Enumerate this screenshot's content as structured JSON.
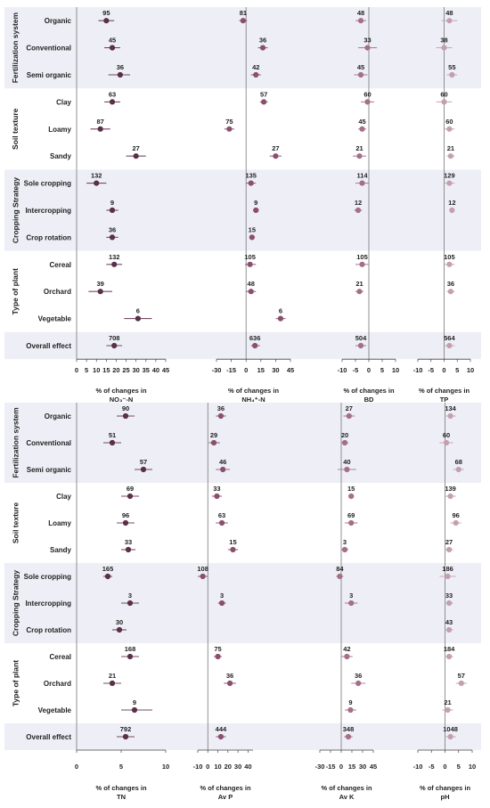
{
  "chart_data": [
    {
      "type": "forest",
      "title": "",
      "groups": [
        {
          "label": "Fertilization system",
          "shaded": true,
          "rows": [
            "Organic",
            "Conventional",
            "Semi organic"
          ]
        },
        {
          "label": "Soil texture",
          "shaded": false,
          "rows": [
            "Clay",
            "Loamy",
            "Sandy"
          ]
        },
        {
          "label": "Cropping Strategy",
          "shaded": true,
          "rows": [
            "Sole cropping",
            "Intercropping",
            "Crop rotation"
          ]
        },
        {
          "label": "Type of plant",
          "shaded": false,
          "rows": [
            "Cereal",
            "Orchard",
            "Vegetable"
          ]
        },
        {
          "label": "",
          "shaded": true,
          "rows": [
            "Overall effect"
          ]
        }
      ],
      "panels": [
        {
          "xlabel": [
            "% of changes in",
            "NO₃⁻-N"
          ],
          "xlim": [
            0,
            45
          ],
          "ticks": [
            "0",
            "5",
            "10",
            "15",
            "20",
            "25",
            "30",
            "35",
            "40",
            "45"
          ],
          "color": "#5a2f48",
          "points": [
            {
              "n": "95",
              "mean": 15,
              "lo": 11,
              "hi": 19
            },
            {
              "n": "45",
              "mean": 18,
              "lo": 14,
              "hi": 22
            },
            {
              "n": "36",
              "mean": 22,
              "lo": 16,
              "hi": 27
            },
            {
              "n": "63",
              "mean": 18,
              "lo": 14,
              "hi": 22
            },
            {
              "n": "87",
              "mean": 12,
              "lo": 7,
              "hi": 17
            },
            {
              "n": "27",
              "mean": 30,
              "lo": 25,
              "hi": 35
            },
            {
              "n": "132",
              "mean": 10,
              "lo": 5,
              "hi": 15
            },
            {
              "n": "9",
              "mean": 18,
              "lo": 15,
              "hi": 21
            },
            {
              "n": "36",
              "mean": 18,
              "lo": 15,
              "hi": 21
            },
            {
              "n": "132",
              "mean": 19,
              "lo": 15,
              "hi": 23
            },
            {
              "n": "39",
              "mean": 12,
              "lo": 6,
              "hi": 18
            },
            {
              "n": "6",
              "mean": 31,
              "lo": 24,
              "hi": 38
            },
            {
              "n": "708",
              "mean": 19,
              "lo": 15,
              "hi": 23
            }
          ]
        },
        {
          "xlabel": [
            "% of changes in",
            "NH₄⁺-N"
          ],
          "xlim": [
            -30,
            45
          ],
          "ticks": [
            "-30",
            "-15",
            "0",
            "15",
            "30",
            "45"
          ],
          "color": "#8b4f6e",
          "points": [
            {
              "n": "81",
              "mean": -3,
              "lo": -7,
              "hi": 1
            },
            {
              "n": "36",
              "mean": 17,
              "lo": 12,
              "hi": 22
            },
            {
              "n": "42",
              "mean": 10,
              "lo": 5,
              "hi": 15
            },
            {
              "n": "57",
              "mean": 18,
              "lo": 14,
              "hi": 22
            },
            {
              "n": "75",
              "mean": -17,
              "lo": -22,
              "hi": -12
            },
            {
              "n": "27",
              "mean": 30,
              "lo": 24,
              "hi": 36
            },
            {
              "n": "135",
              "mean": 5,
              "lo": 0,
              "hi": 10
            },
            {
              "n": "9",
              "mean": 10,
              "lo": 7,
              "hi": 13
            },
            {
              "n": "15",
              "mean": 6,
              "lo": 4,
              "hi": 9
            },
            {
              "n": "105",
              "mean": 4,
              "lo": -1,
              "hi": 10
            },
            {
              "n": "48",
              "mean": 5,
              "lo": 0,
              "hi": 10
            },
            {
              "n": "6",
              "mean": 35,
              "lo": 30,
              "hi": 40
            },
            {
              "n": "636",
              "mean": 9,
              "lo": 5,
              "hi": 14
            }
          ]
        },
        {
          "xlabel": [
            "% of changes in",
            "BD"
          ],
          "xlim": [
            -10,
            10
          ],
          "ticks": [
            "-10",
            "-5",
            "0",
            "5",
            "10"
          ],
          "color": "#a56f8a",
          "points": [
            {
              "n": "48",
              "mean": -3,
              "lo": -5,
              "hi": -1
            },
            {
              "n": "33",
              "mean": -0.5,
              "lo": -4,
              "hi": 3
            },
            {
              "n": "45",
              "mean": -3,
              "lo": -5.5,
              "hi": -0.5
            },
            {
              "n": "60",
              "mean": -0.5,
              "lo": -3,
              "hi": 2
            },
            {
              "n": "45",
              "mean": -2.5,
              "lo": -4,
              "hi": -1
            },
            {
              "n": "21",
              "mean": -3.5,
              "lo": -6,
              "hi": -1
            },
            {
              "n": "114",
              "mean": -2.5,
              "lo": -5,
              "hi": 0
            },
            {
              "n": "12",
              "mean": -4,
              "lo": -5.5,
              "hi": -2.5
            },
            {
              "n": "",
              "mean": null,
              "lo": null,
              "hi": null
            },
            {
              "n": "105",
              "mean": -2.5,
              "lo": -5,
              "hi": 0
            },
            {
              "n": "21",
              "mean": -3.5,
              "lo": -5,
              "hi": -2
            },
            {
              "n": "",
              "mean": null,
              "lo": null,
              "hi": null
            },
            {
              "n": "504",
              "mean": -3,
              "lo": -5,
              "hi": -1
            }
          ]
        },
        {
          "xlabel": [
            "% of changes in",
            "TP"
          ],
          "xlim": [
            -10,
            10
          ],
          "ticks": [
            "-10",
            "-5",
            "0",
            "5",
            "10"
          ],
          "color": "#c49fb2",
          "points": [
            {
              "n": "48",
              "mean": 2,
              "lo": -1,
              "hi": 5
            },
            {
              "n": "38",
              "mean": 0,
              "lo": -3,
              "hi": 3
            },
            {
              "n": "55",
              "mean": 3,
              "lo": 1,
              "hi": 5
            },
            {
              "n": "60",
              "mean": 0,
              "lo": -3,
              "hi": 3
            },
            {
              "n": "60",
              "mean": 2,
              "lo": 0,
              "hi": 4
            },
            {
              "n": "21",
              "mean": 2.5,
              "lo": 1,
              "hi": 4
            },
            {
              "n": "129",
              "mean": 2,
              "lo": 0,
              "hi": 4
            },
            {
              "n": "12",
              "mean": 3,
              "lo": 2,
              "hi": 4
            },
            {
              "n": "",
              "mean": null,
              "lo": null,
              "hi": null
            },
            {
              "n": "105",
              "mean": 2,
              "lo": 0,
              "hi": 4
            },
            {
              "n": "36",
              "mean": 2.5,
              "lo": 1,
              "hi": 4
            },
            {
              "n": "",
              "mean": null,
              "lo": null,
              "hi": null
            },
            {
              "n": "564",
              "mean": 2,
              "lo": 0,
              "hi": 4
            }
          ]
        }
      ]
    },
    {
      "type": "forest",
      "title": "",
      "groups": [
        {
          "label": "Fertilization system",
          "shaded": true,
          "rows": [
            "Organic",
            "Conventional",
            "Semi organic"
          ]
        },
        {
          "label": "Soil texture",
          "shaded": false,
          "rows": [
            "Clay",
            "Loamy",
            "Sandy"
          ]
        },
        {
          "label": "Cropping Strategy",
          "shaded": true,
          "rows": [
            "Sole cropping",
            "Intercropping",
            "Crop rotation"
          ]
        },
        {
          "label": "Type of plant",
          "shaded": false,
          "rows": [
            "Cereal",
            "Orchard",
            "Vegetable"
          ]
        },
        {
          "label": "",
          "shaded": true,
          "rows": [
            "Overall effect"
          ]
        }
      ],
      "panels": [
        {
          "xlabel": [
            "% of changes in",
            "TN"
          ],
          "xlim": [
            0,
            10
          ],
          "ticks": [
            "0",
            "5",
            "10"
          ],
          "color": "#5a2f48",
          "points": [
            {
              "n": "90",
              "mean": 5.5,
              "lo": 4.5,
              "hi": 6.5
            },
            {
              "n": "51",
              "mean": 4,
              "lo": 3,
              "hi": 5
            },
            {
              "n": "57",
              "mean": 7.5,
              "lo": 6.5,
              "hi": 8.5
            },
            {
              "n": "69",
              "mean": 6,
              "lo": 5,
              "hi": 7
            },
            {
              "n": "96",
              "mean": 5.5,
              "lo": 4.5,
              "hi": 6.5
            },
            {
              "n": "33",
              "mean": 5.8,
              "lo": 5,
              "hi": 6.6
            },
            {
              "n": "165",
              "mean": 3.5,
              "lo": 3,
              "hi": 4
            },
            {
              "n": "3",
              "mean": 6,
              "lo": 5,
              "hi": 7
            },
            {
              "n": "30",
              "mean": 4.8,
              "lo": 4,
              "hi": 5.6
            },
            {
              "n": "168",
              "mean": 6,
              "lo": 5,
              "hi": 7
            },
            {
              "n": "21",
              "mean": 4,
              "lo": 3,
              "hi": 5
            },
            {
              "n": "9",
              "mean": 6.5,
              "lo": 5,
              "hi": 8.5
            },
            {
              "n": "792",
              "mean": 5.5,
              "lo": 4.5,
              "hi": 6.5
            }
          ]
        },
        {
          "xlabel": [
            "% of changes in",
            "Av P"
          ],
          "xlim": [
            -10,
            45
          ],
          "ticks": [
            "-10",
            "0",
            "10",
            "20",
            "30",
            "40"
          ],
          "color": "#8b4f6e",
          "points": [
            {
              "n": "36",
              "mean": 13,
              "lo": 8,
              "hi": 18
            },
            {
              "n": "29",
              "mean": 6,
              "lo": 1,
              "hi": 12
            },
            {
              "n": "46",
              "mean": 15,
              "lo": 8,
              "hi": 22
            },
            {
              "n": "33",
              "mean": 9,
              "lo": 4,
              "hi": 14
            },
            {
              "n": "63",
              "mean": 14,
              "lo": 8,
              "hi": 20
            },
            {
              "n": "15",
              "mean": 25,
              "lo": 20,
              "hi": 30
            },
            {
              "n": "108",
              "mean": -5,
              "lo": -10,
              "hi": 0
            },
            {
              "n": "3",
              "mean": 14,
              "lo": 10,
              "hi": 18
            },
            {
              "n": "",
              "mean": null,
              "lo": null,
              "hi": null
            },
            {
              "n": "75",
              "mean": 10,
              "lo": 6,
              "hi": 14
            },
            {
              "n": "36",
              "mean": 22,
              "lo": 16,
              "hi": 28
            },
            {
              "n": "",
              "mean": null,
              "lo": null,
              "hi": null
            },
            {
              "n": "444",
              "mean": 13,
              "lo": 8,
              "hi": 18
            }
          ]
        },
        {
          "xlabel": [
            "% of changes in",
            "Av K"
          ],
          "xlim": [
            -30,
            45
          ],
          "ticks": [
            "-30",
            "-15",
            "0",
            "15",
            "30",
            "45"
          ],
          "color": "#a56f8a",
          "points": [
            {
              "n": "27",
              "mean": 11,
              "lo": 3,
              "hi": 19
            },
            {
              "n": "20",
              "mean": 5,
              "lo": 0,
              "hi": 10
            },
            {
              "n": "40",
              "mean": 8,
              "lo": -5,
              "hi": 21
            },
            {
              "n": "15",
              "mean": 14,
              "lo": 10,
              "hi": 18
            },
            {
              "n": "69",
              "mean": 14,
              "lo": 5,
              "hi": 23
            },
            {
              "n": "3",
              "mean": 5,
              "lo": 0,
              "hi": 10
            },
            {
              "n": "84",
              "mean": -2,
              "lo": -7,
              "hi": 3
            },
            {
              "n": "3",
              "mean": 14,
              "lo": 5,
              "hi": 23
            },
            {
              "n": "",
              "mean": null,
              "lo": null,
              "hi": null
            },
            {
              "n": "42",
              "mean": 8,
              "lo": 0,
              "hi": 16
            },
            {
              "n": "36",
              "mean": 24,
              "lo": 14,
              "hi": 34
            },
            {
              "n": "9",
              "mean": 13,
              "lo": 5,
              "hi": 21
            },
            {
              "n": "348",
              "mean": 10,
              "lo": 4,
              "hi": 16
            }
          ]
        },
        {
          "xlabel": [
            "% of changes in",
            "pH"
          ],
          "xlim": [
            -10,
            10
          ],
          "ticks": [
            "-10",
            "-5",
            "0",
            "5",
            "10"
          ],
          "color": "#c49fb2",
          "points": [
            {
              "n": "134",
              "mean": 2,
              "lo": 0,
              "hi": 4
            },
            {
              "n": "60",
              "mean": 0.5,
              "lo": -2,
              "hi": 3
            },
            {
              "n": "68",
              "mean": 5,
              "lo": 3,
              "hi": 7
            },
            {
              "n": "139",
              "mean": 2,
              "lo": 0,
              "hi": 4
            },
            {
              "n": "96",
              "mean": 4,
              "lo": 2,
              "hi": 6
            },
            {
              "n": "27",
              "mean": 1.5,
              "lo": 0,
              "hi": 3
            },
            {
              "n": "186",
              "mean": 1,
              "lo": -2,
              "hi": 4
            },
            {
              "n": "33",
              "mean": 1.5,
              "lo": 0,
              "hi": 3
            },
            {
              "n": "43",
              "mean": 1.5,
              "lo": 0,
              "hi": 3
            },
            {
              "n": "184",
              "mean": 1.5,
              "lo": 0,
              "hi": 3
            },
            {
              "n": "57",
              "mean": 6,
              "lo": 4,
              "hi": 8
            },
            {
              "n": "21",
              "mean": 1,
              "lo": -1,
              "hi": 3
            },
            {
              "n": "1048",
              "mean": 2,
              "lo": 0,
              "hi": 4
            }
          ]
        }
      ]
    }
  ]
}
